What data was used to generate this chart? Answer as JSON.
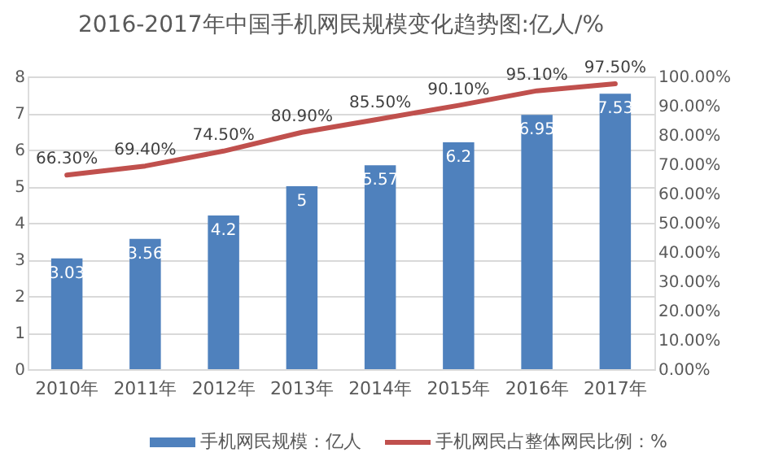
{
  "chart_data": {
    "type": "bar",
    "title": "2016-2017年中国手机网民规模变化趋势图:亿人/%",
    "categories": [
      "2010年",
      "2011年",
      "2012年",
      "2013年",
      "2014年",
      "2015年",
      "2016年",
      "2017年"
    ],
    "series": [
      {
        "name": "手机网民规模：亿人",
        "color": "#4f81bd",
        "values": [
          3.03,
          3.56,
          4.2,
          5,
          5.57,
          6.2,
          6.95,
          7.53
        ],
        "value_labels": [
          "3.03",
          "3.56",
          "4.2",
          "5",
          "5.57",
          "6.2",
          "6.95",
          "7.53"
        ]
      },
      {
        "name": "手机网民占整体网民比例：%",
        "type": "line",
        "axis": "y2",
        "color": "#c0504d",
        "values": [
          66.3,
          69.4,
          74.5,
          80.9,
          85.5,
          90.1,
          95.1,
          97.5
        ],
        "value_labels": [
          "66.30%",
          "69.40%",
          "74.50%",
          "80.90%",
          "85.50%",
          "90.10%",
          "95.10%",
          "97.50%"
        ]
      }
    ],
    "ylim": [
      0,
      8
    ],
    "yticks": [
      0,
      1,
      2,
      3,
      4,
      5,
      6,
      7,
      8
    ],
    "y2lim": [
      0,
      100
    ],
    "y2ticks": [
      {
        "value": 0,
        "label": "0.00%"
      },
      {
        "value": 10,
        "label": "10.00%"
      },
      {
        "value": 20,
        "label": "20.00%"
      },
      {
        "value": 30,
        "label": "30.00%"
      },
      {
        "value": 40,
        "label": "40.00%"
      },
      {
        "value": 50,
        "label": "50.00%"
      },
      {
        "value": 60,
        "label": "60.00%"
      },
      {
        "value": 70,
        "label": "70.00%"
      },
      {
        "value": 80,
        "label": "80.00%"
      },
      {
        "value": 90,
        "label": "90.00%"
      },
      {
        "value": 100,
        "label": "100.00%"
      }
    ],
    "grid": "y",
    "legend": "bottom",
    "marker": "none",
    "line_style": "solid"
  }
}
